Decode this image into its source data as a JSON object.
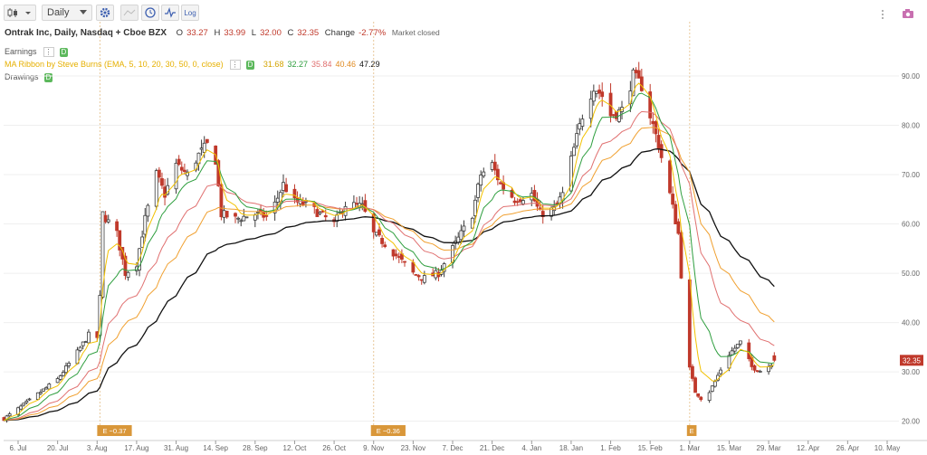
{
  "toolbar": {
    "interval": "Daily",
    "log_label": "Log"
  },
  "header": {
    "symbol": "Ontrak Inc, Daily, Nasdaq + Cboe BZX",
    "o_label": "O",
    "o_value": "33.27",
    "h_label": "H",
    "h_value": "33.99",
    "l_label": "L",
    "l_value": "32.00",
    "c_label": "C",
    "c_value": "32.35",
    "change_label": "Change",
    "change_value": "-2.77%",
    "status": "Market closed"
  },
  "studies": {
    "earnings_label": "Earnings",
    "ribbon_label": "MA Ribbon by Steve Burns (EMA, 5, 10, 20, 30, 50, 0, close)",
    "ribbon_values": [
      "31.68",
      "32.27",
      "35.84",
      "40.46",
      "47.29"
    ],
    "drawings_label": "Drawings",
    "tag": "D"
  },
  "colors": {
    "up": "#3a3a3a",
    "down": "#c0392b",
    "ema5": "#f2c100",
    "ema10": "#2e9e3e",
    "ema20": "#e07070",
    "ema30": "#f0a030",
    "ema50": "#111111",
    "last_price_bg": "#c0392b",
    "earnings_marker": "#d9973a"
  },
  "chart_data": {
    "type": "candlestick",
    "title": "Ontrak Inc, Daily, Nasdaq + Cboe BZX",
    "ylim": [
      17,
      101
    ],
    "y_ticks": [
      "20.00",
      "30.00",
      "40.00",
      "50.00",
      "60.00",
      "70.00",
      "80.00",
      "90.00"
    ],
    "x_ticks": [
      "6. Jul",
      "20. Jul",
      "3. Aug",
      "17. Aug",
      "31. Aug",
      "14. Sep",
      "28. Sep",
      "12. Oct",
      "26. Oct",
      "9. Nov",
      "23. Nov",
      "7. Dec",
      "21. Dec",
      "4. Jan",
      "18. Jan",
      "1. Feb",
      "15. Feb",
      "1. Mar",
      "15. Mar",
      "29. Mar",
      "12. Apr",
      "26. Apr",
      "10. May"
    ],
    "last_price": "32.35",
    "earnings_markers": [
      {
        "label": "E −0.37",
        "date": "4. Aug"
      },
      {
        "label": "E −0.36",
        "date": "9. Nov"
      },
      {
        "label": "E",
        "date": "1. Mar"
      }
    ],
    "close_path": [
      [
        "1. Jul",
        20.5
      ],
      [
        "6. Jul",
        22.5
      ],
      [
        "13. Jul",
        25.5
      ],
      [
        "20. Jul",
        28.5
      ],
      [
        "27. Jul",
        34.0
      ],
      [
        "31. Jul",
        37.5
      ],
      [
        "3. Aug",
        37.0
      ],
      [
        "4. Aug",
        45.0
      ],
      [
        "5. Aug",
        62.0
      ],
      [
        "10. Aug",
        58.0
      ],
      [
        "13. Aug",
        50.0
      ],
      [
        "17. Aug",
        52.0
      ],
      [
        "20. Aug",
        61.0
      ],
      [
        "24. Aug",
        70.0
      ],
      [
        "27. Aug",
        66.0
      ],
      [
        "31. Aug",
        72.0
      ],
      [
        "4. Sep",
        70.0
      ],
      [
        "8. Sep",
        74.0
      ],
      [
        "11. Sep",
        76.0
      ],
      [
        "14. Sep",
        73.0
      ],
      [
        "16. Sep",
        62.0
      ],
      [
        "21. Sep",
        61.0
      ],
      [
        "28. Sep",
        62.0
      ],
      [
        "2. Oct",
        61.5
      ],
      [
        "5. Oct",
        64.0
      ],
      [
        "8. Oct",
        68.0
      ],
      [
        "12. Oct",
        64.5
      ],
      [
        "16. Oct",
        64.0
      ],
      [
        "21. Oct",
        62.0
      ],
      [
        "26. Oct",
        60.0
      ],
      [
        "30. Oct",
        64.0
      ],
      [
        "5. Nov",
        63.5
      ],
      [
        "9. Nov",
        58.0
      ],
      [
        "13. Nov",
        56.0
      ],
      [
        "18. Nov",
        53.0
      ],
      [
        "23. Nov",
        50.0
      ],
      [
        "27. Nov",
        49.0
      ],
      [
        "2. Dec",
        50.0
      ],
      [
        "7. Dec",
        55.0
      ],
      [
        "10. Dec",
        58.0
      ],
      [
        "14. Dec",
        62.0
      ],
      [
        "17. Dec",
        70.0
      ],
      [
        "21. Dec",
        72.0
      ],
      [
        "24. Dec",
        68.0
      ],
      [
        "29. Dec",
        65.0
      ],
      [
        "4. Jan",
        66.0
      ],
      [
        "7. Jan",
        62.0
      ],
      [
        "12. Jan",
        63.0
      ],
      [
        "15. Jan",
        66.0
      ],
      [
        "18. Jan",
        73.0
      ],
      [
        "22. Jan",
        82.0
      ],
      [
        "26. Jan",
        88.0
      ],
      [
        "29. Jan",
        86.0
      ],
      [
        "1. Feb",
        82.0
      ],
      [
        "5. Feb",
        83.0
      ],
      [
        "9. Feb",
        90.0
      ],
      [
        "12. Feb",
        88.0
      ],
      [
        "15. Feb",
        82.0
      ],
      [
        "18. Feb",
        76.0
      ],
      [
        "22. Feb",
        66.0
      ],
      [
        "25. Feb",
        58.0
      ],
      [
        "28. Feb",
        33.0
      ],
      [
        "3. Mar",
        26.0
      ],
      [
        "6. Mar",
        24.0
      ],
      [
        "10. Mar",
        28.0
      ],
      [
        "14. Mar",
        33.0
      ],
      [
        "19. Mar",
        36.0
      ],
      [
        "23. Mar",
        31.0
      ],
      [
        "27. Mar",
        30.0
      ],
      [
        "31. Mar",
        32.35
      ]
    ]
  }
}
